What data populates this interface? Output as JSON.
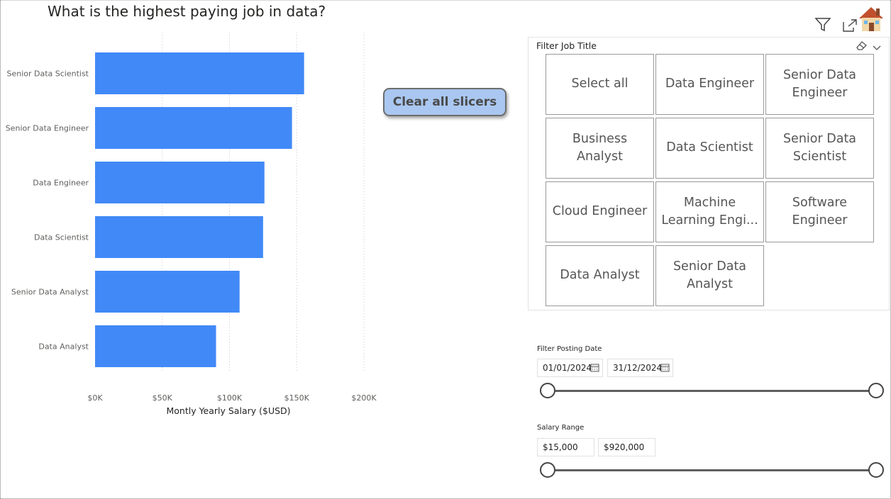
{
  "chart_data": {
    "type": "bar",
    "orientation": "horizontal",
    "title": "What is the highest paying job in data?",
    "categories": [
      "Senior Data Scientist",
      "Senior Data Engineer",
      "Data Engineer",
      "Data Scientist",
      "Senior Data Analyst",
      "Data Analyst"
    ],
    "values": [
      155500,
      146500,
      126000,
      125000,
      107500,
      90000
    ],
    "xlabel": "Montly Yearly Salary ($USD)",
    "ylabel": "",
    "xlim": [
      0,
      200000
    ],
    "xticks": [
      "$0K",
      "$50K",
      "$100K",
      "$150K",
      "$200K"
    ],
    "tick_values": [
      0,
      50000,
      100000,
      150000,
      200000
    ],
    "bar_color": "#4189f7",
    "grid": "vertical-dotted"
  },
  "buttons": {
    "clear_all_slicers": "Clear all slicers"
  },
  "job_slicer": {
    "title": "Filter Job Title",
    "options": [
      "Select all",
      "Data Engineer",
      "Senior Data Engineer",
      "Business Analyst",
      "Data Scientist",
      "Senior Data Scientist",
      "Cloud Engineer",
      "Machine Learning Engi...",
      "Software Engineer",
      "Data Analyst",
      "Senior Data Analyst"
    ]
  },
  "date_slicer": {
    "label": "Filter Posting Date",
    "start": "01/01/2024",
    "end": "31/12/2024"
  },
  "salary_slicer": {
    "label": "Salary Range",
    "min": "$15,000",
    "max": "$920,000"
  },
  "icons": [
    "filter-icon",
    "focus-mode-icon",
    "home-icon",
    "eraser-icon",
    "chevron-down-icon",
    "calendar-icon"
  ]
}
